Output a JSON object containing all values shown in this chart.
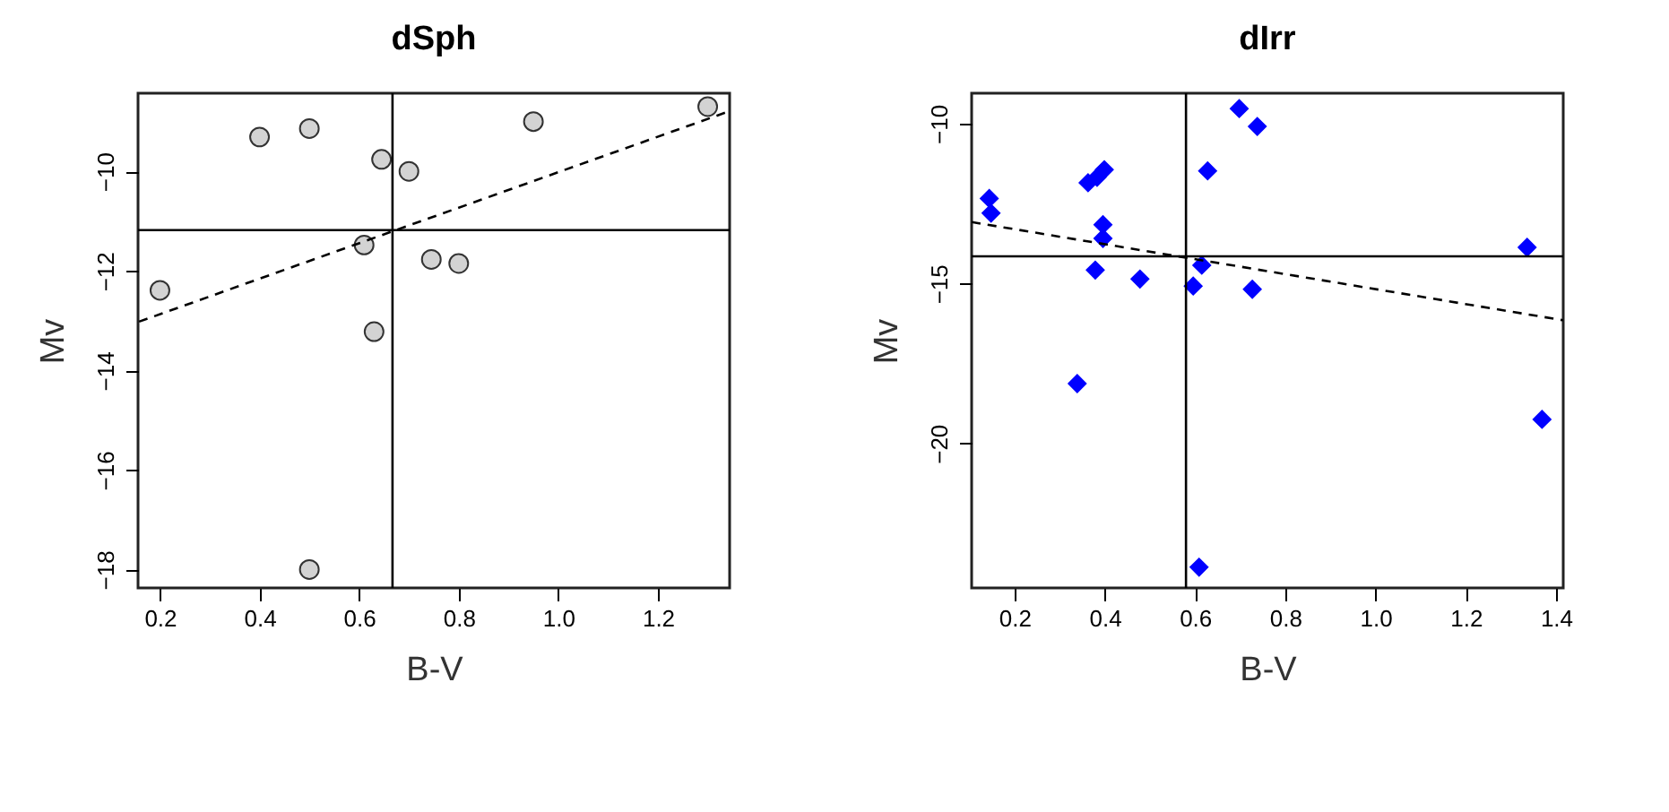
{
  "chart_data": [
    {
      "type": "scatter",
      "title": "dSph",
      "xlabel": "B-V",
      "ylabel": "Mv",
      "grid": false,
      "xlim": [
        0.156,
        1.344
      ],
      "ylim": [
        -18.37,
        -8.43
      ],
      "xticks": [
        0.2,
        0.4,
        0.6,
        0.8,
        {
          "value": 1,
          "label": "1.0"
        },
        1.2
      ],
      "yticks": [
        -18,
        -16,
        -14,
        -12,
        -10
      ],
      "series": [
        {
          "marker": "circle",
          "color": "#d3d3d3",
          "x": [
            0.4,
            0.5,
            0.645,
            0.7,
            0.95,
            1.3,
            0.2,
            0.61,
            0.745,
            0.8,
            0.63,
            0.5
          ],
          "values": [
            -9.31,
            -9.14,
            -9.76,
            -10.0,
            -9.0,
            -8.7,
            -12.39,
            -11.48,
            -11.77,
            -11.85,
            -13.22,
            -18.0
          ]
        },
        {
          "type": "line",
          "marker": "none",
          "line_style": "dashed",
          "color": "#000000",
          "x": [
            0.158,
            1.344
          ],
          "values": [
            -13.02,
            -8.79
          ]
        }
      ],
      "ref_lines": [
        {
          "axis": "x",
          "value": 0.667,
          "color": "#000000"
        },
        {
          "axis": "y",
          "value": -11.18,
          "color": "#000000"
        }
      ]
    },
    {
      "type": "scatter",
      "title": "dIrr",
      "xlabel": "B-V",
      "ylabel": "Mv",
      "grid": false,
      "xlim": [
        0.105,
        1.416
      ],
      "ylim": [
        -24.52,
        -9.05
      ],
      "xticks": [
        0.2,
        0.4,
        0.6,
        0.8,
        {
          "value": 1,
          "label": "1.0"
        },
        1.2,
        1.4
      ],
      "yticks": [
        -20,
        -15,
        -10
      ],
      "series": [
        {
          "marker": "diamond",
          "color": "#0000ff",
          "x": [
            0.698,
            0.738,
            0.628,
            0.144,
            0.148,
            0.363,
            0.383,
            0.399,
            0.396,
            0.396,
            0.379,
            0.478,
            0.596,
            0.615,
            0.727,
            1.336,
            0.339,
            1.369,
            0.609
          ],
          "values": [
            -9.53,
            -10.09,
            -11.48,
            -12.34,
            -12.8,
            -11.85,
            -11.68,
            -11.44,
            -13.16,
            -13.59,
            -14.58,
            -14.86,
            -15.08,
            -14.43,
            -15.18,
            -13.87,
            -18.13,
            -19.25,
            -23.87
          ]
        },
        {
          "type": "line",
          "marker": "none",
          "line_style": "dashed",
          "color": "#000000",
          "x": [
            0.105,
            1.416
          ],
          "values": [
            -13.08,
            -16.15
          ]
        }
      ],
      "ref_lines": [
        {
          "axis": "x",
          "value": 0.58,
          "color": "#000000"
        },
        {
          "axis": "y",
          "value": -14.15,
          "color": "#000000"
        }
      ]
    }
  ]
}
